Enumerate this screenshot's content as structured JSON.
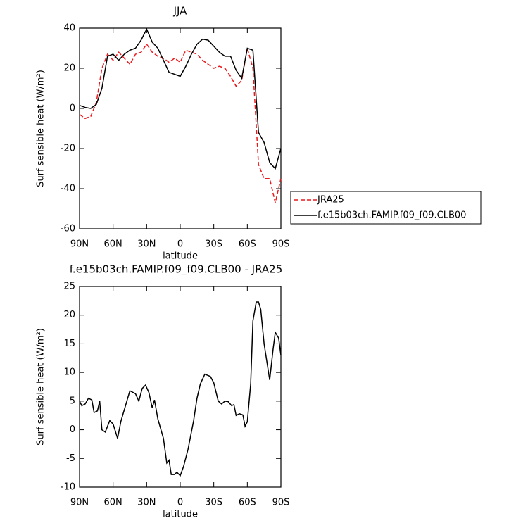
{
  "chart_data": [
    {
      "type": "line",
      "title": "JJA",
      "ylabel": "Surf sensible heat (W/m²)",
      "xlabel": "latitude",
      "x": [
        90,
        85,
        80,
        75,
        70,
        65,
        60,
        55,
        50,
        45,
        40,
        35,
        30,
        25,
        20,
        15,
        10,
        5,
        0,
        -5,
        -10,
        -15,
        -20,
        -25,
        -30,
        -35,
        -40,
        -45,
        -50,
        -55,
        -60,
        -65,
        -70,
        -75,
        -80,
        -85,
        -90
      ],
      "xlim": [
        90,
        -90
      ],
      "xticks": [
        {
          "value": 90,
          "label": "90N"
        },
        {
          "value": 60,
          "label": "60N"
        },
        {
          "value": 30,
          "label": "30N"
        },
        0,
        {
          "value": -30,
          "label": "30S"
        },
        {
          "value": -60,
          "label": "60S"
        },
        {
          "value": -90,
          "label": "90S"
        }
      ],
      "ylim": [
        -60,
        40
      ],
      "yticks": [
        -60,
        -40,
        -20,
        0,
        20,
        40
      ],
      "legend": "right",
      "series": [
        {
          "name": "JRA25",
          "color": "#e8191d",
          "dashed": true,
          "values": [
            -3,
            -5,
            -4,
            3,
            20,
            27,
            24,
            28,
            25,
            22,
            27,
            28,
            32,
            28,
            26,
            25,
            23,
            25,
            23,
            29,
            28,
            27,
            24,
            22,
            20,
            21,
            20,
            16,
            11,
            14,
            30,
            20,
            -28,
            -35,
            -35,
            -47,
            -35
          ]
        },
        {
          "name": "f.e15b03ch.FAMIP.f09_f09.CLB00",
          "color": "#000000",
          "dashed": false,
          "values": [
            1.5,
            0.5,
            0,
            2,
            10,
            26,
            27,
            24,
            27,
            29,
            30,
            34,
            39.5,
            33,
            30,
            24,
            18,
            17,
            16,
            21,
            27,
            32,
            34.5,
            34,
            31,
            28,
            26,
            26,
            19,
            15,
            30,
            29,
            -12,
            -17,
            -27,
            -30,
            -20
          ]
        }
      ]
    },
    {
      "type": "line",
      "title": "f.e15b03ch.FAMIP.f09_f09.CLB00 - JRA25",
      "ylabel": "Surf sensible heat (W/m²)",
      "xlabel": "latitude",
      "x": [
        90,
        88,
        85,
        82,
        79,
        77,
        74,
        72,
        70,
        67,
        63,
        60,
        56,
        53,
        45,
        40,
        37,
        34,
        31,
        28,
        25,
        23,
        20,
        15,
        12,
        10,
        8,
        5,
        3,
        0,
        -3,
        -7,
        -12,
        -15,
        -18,
        -22,
        -27,
        -30,
        -34,
        -37,
        -40,
        -43,
        -46,
        -48,
        -50,
        -53,
        -56,
        -58,
        -60,
        -63,
        -65,
        -68,
        -70,
        -72,
        -75,
        -80,
        -83,
        -85,
        -88,
        -90
      ],
      "xlim": [
        90,
        -90
      ],
      "xticks": [
        {
          "value": 90,
          "label": "90N"
        },
        {
          "value": 60,
          "label": "60N"
        },
        {
          "value": 30,
          "label": "30N"
        },
        0,
        {
          "value": -30,
          "label": "30S"
        },
        {
          "value": -60,
          "label": "60S"
        },
        {
          "value": -90,
          "label": "90S"
        }
      ],
      "ylim": [
        -10,
        25
      ],
      "yticks": [
        -10,
        -5,
        0,
        5,
        10,
        15,
        20,
        25
      ],
      "color": "#000000",
      "values": [
        5,
        4.2,
        4.5,
        5.5,
        5.2,
        3,
        3.3,
        5,
        0,
        -0.4,
        1.6,
        1,
        -1.5,
        1.5,
        6.8,
        6.3,
        5,
        7.2,
        7.8,
        6.5,
        3.8,
        5.2,
        1.9,
        -1.5,
        -5.8,
        -5.3,
        -7.8,
        -7.8,
        -7.4,
        -8,
        -6.4,
        -3.4,
        1.6,
        5.5,
        8,
        9.7,
        9.3,
        8.2,
        5,
        4.5,
        5,
        4.9,
        4.2,
        4.4,
        2.5,
        2.8,
        2.6,
        0.6,
        1.4,
        8,
        19,
        22.3,
        22.3,
        21,
        15,
        8.7,
        14,
        17,
        16,
        13
      ]
    }
  ]
}
